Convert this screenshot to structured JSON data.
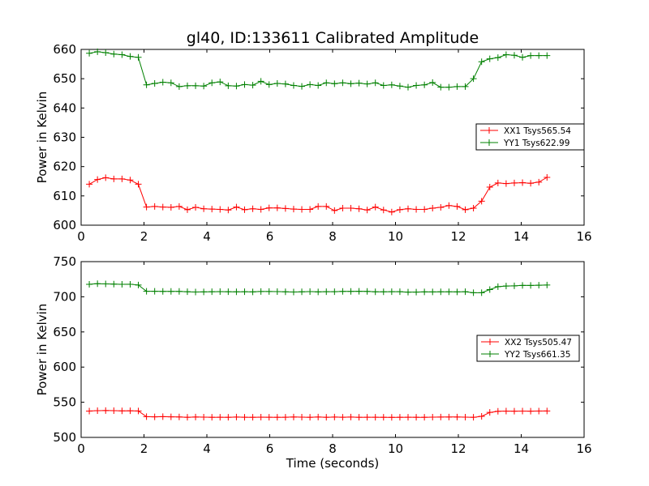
{
  "title": "gl40, ID:133611 Calibrated Amplitude",
  "chart_data": [
    {
      "type": "line",
      "title": "gl40, ID:133611 Calibrated Amplitude",
      "xlabel": "",
      "ylabel": "Power in Kelvin",
      "xlim": [
        0,
        16
      ],
      "ylim": [
        600,
        660
      ],
      "xticks": [
        0,
        2,
        4,
        6,
        8,
        10,
        12,
        14,
        16
      ],
      "yticks": [
        600,
        610,
        620,
        630,
        640,
        650,
        660
      ],
      "grid": false,
      "legend_position": "center-right",
      "marker": "plus",
      "series": [
        {
          "name": "XX1 Tsys565.54",
          "color": "#ff0000",
          "x": [
            0.26,
            0.52,
            0.78,
            1.04,
            1.3,
            1.56,
            1.82,
            2.08,
            2.34,
            2.6,
            2.86,
            3.12,
            3.38,
            3.64,
            3.9,
            4.16,
            4.42,
            4.68,
            4.94,
            5.2,
            5.46,
            5.72,
            5.98,
            6.24,
            6.5,
            6.76,
            7.02,
            7.28,
            7.54,
            7.8,
            8.06,
            8.32,
            8.58,
            8.84,
            9.1,
            9.36,
            9.62,
            9.88,
            10.14,
            10.4,
            10.66,
            10.92,
            11.18,
            11.44,
            11.7,
            11.96,
            12.22,
            12.48,
            12.74,
            13.0,
            13.26,
            13.52,
            13.78,
            14.04,
            14.3,
            14.56,
            14.82
          ],
          "y": [
            614.0,
            615.6,
            616.2,
            615.8,
            615.8,
            615.4,
            614.0,
            606.2,
            606.4,
            606.2,
            606.1,
            606.4,
            605.3,
            606.1,
            605.6,
            605.5,
            605.4,
            605.2,
            606.2,
            605.3,
            605.6,
            605.4,
            605.9,
            605.9,
            605.7,
            605.5,
            605.4,
            605.4,
            606.4,
            606.4,
            605.0,
            605.8,
            605.8,
            605.6,
            605.2,
            606.2,
            605.2,
            604.5,
            605.3,
            605.6,
            605.4,
            605.4,
            605.8,
            606.1,
            606.7,
            606.4,
            605.3,
            605.8,
            608.2,
            613.0,
            614.4,
            614.2,
            614.4,
            614.5,
            614.3,
            614.7,
            616.3
          ]
        },
        {
          "name": "YY1 Tsys622.99",
          "color": "#008000",
          "x": [
            0.26,
            0.52,
            0.78,
            1.04,
            1.3,
            1.56,
            1.82,
            2.08,
            2.34,
            2.6,
            2.86,
            3.12,
            3.38,
            3.64,
            3.9,
            4.16,
            4.42,
            4.68,
            4.94,
            5.2,
            5.46,
            5.72,
            5.98,
            6.24,
            6.5,
            6.76,
            7.02,
            7.28,
            7.54,
            7.8,
            8.06,
            8.32,
            8.58,
            8.84,
            9.1,
            9.36,
            9.62,
            9.88,
            10.14,
            10.4,
            10.66,
            10.92,
            11.18,
            11.44,
            11.7,
            11.96,
            12.22,
            12.48,
            12.74,
            13.0,
            13.26,
            13.52,
            13.78,
            14.04,
            14.3,
            14.56,
            14.82
          ],
          "y": [
            658.7,
            659.2,
            658.9,
            658.4,
            658.2,
            657.6,
            657.3,
            647.9,
            648.4,
            648.8,
            648.6,
            647.3,
            647.6,
            647.6,
            647.5,
            648.6,
            648.9,
            647.6,
            647.5,
            648.0,
            647.8,
            649.1,
            648.0,
            648.4,
            648.2,
            647.7,
            647.4,
            648.0,
            647.7,
            648.6,
            648.3,
            648.6,
            648.3,
            648.5,
            648.2,
            648.6,
            647.7,
            647.9,
            647.5,
            647.1,
            647.7,
            647.9,
            648.7,
            647.1,
            647.1,
            647.3,
            647.3,
            650.0,
            655.8,
            656.8,
            657.2,
            658.2,
            658.0,
            657.3,
            657.9,
            657.9,
            657.9
          ]
        }
      ]
    },
    {
      "type": "line",
      "title": "",
      "xlabel": "Time (seconds)",
      "ylabel": "Power in Kelvin",
      "xlim": [
        0,
        16
      ],
      "ylim": [
        500,
        750
      ],
      "xticks": [
        0,
        2,
        4,
        6,
        8,
        10,
        12,
        14,
        16
      ],
      "yticks": [
        500,
        550,
        600,
        650,
        700,
        750
      ],
      "grid": false,
      "legend_position": "center-right",
      "marker": "plus",
      "series": [
        {
          "name": "XX2 Tsys505.47",
          "color": "#ff0000",
          "x": [
            0.26,
            0.52,
            0.78,
            1.04,
            1.3,
            1.56,
            1.82,
            2.08,
            2.34,
            2.6,
            2.86,
            3.12,
            3.38,
            3.64,
            3.9,
            4.16,
            4.42,
            4.68,
            4.94,
            5.2,
            5.46,
            5.72,
            5.98,
            6.24,
            6.5,
            6.76,
            7.02,
            7.28,
            7.54,
            7.8,
            8.06,
            8.32,
            8.58,
            8.84,
            9.1,
            9.36,
            9.62,
            9.88,
            10.14,
            10.4,
            10.66,
            10.92,
            11.18,
            11.44,
            11.7,
            11.96,
            12.22,
            12.48,
            12.74,
            13.0,
            13.26,
            13.52,
            13.78,
            14.04,
            14.3,
            14.56,
            14.82
          ],
          "y": [
            537.5,
            538.0,
            538.2,
            538.0,
            537.8,
            537.9,
            537.6,
            529.5,
            529.3,
            529.5,
            529.3,
            529.1,
            528.6,
            529.0,
            528.8,
            528.6,
            528.7,
            528.6,
            528.9,
            528.7,
            528.6,
            528.8,
            528.7,
            528.6,
            528.7,
            529.0,
            528.8,
            528.6,
            529.0,
            528.6,
            528.9,
            528.7,
            528.9,
            528.6,
            528.7,
            528.7,
            528.6,
            528.5,
            528.6,
            528.7,
            528.6,
            528.6,
            528.8,
            528.9,
            529.0,
            529.0,
            528.8,
            528.6,
            530.0,
            535.5,
            537.2,
            537.4,
            537.3,
            537.4,
            537.3,
            537.5,
            537.6
          ]
        },
        {
          "name": "YY2 Tsys661.35",
          "color": "#008000",
          "x": [
            0.26,
            0.52,
            0.78,
            1.04,
            1.3,
            1.56,
            1.82,
            2.08,
            2.34,
            2.6,
            2.86,
            3.12,
            3.38,
            3.64,
            3.9,
            4.16,
            4.42,
            4.68,
            4.94,
            5.2,
            5.46,
            5.72,
            5.98,
            6.24,
            6.5,
            6.76,
            7.02,
            7.28,
            7.54,
            7.8,
            8.06,
            8.32,
            8.58,
            8.84,
            9.1,
            9.36,
            9.62,
            9.88,
            10.14,
            10.4,
            10.66,
            10.92,
            11.18,
            11.44,
            11.7,
            11.96,
            12.22,
            12.48,
            12.74,
            13.0,
            13.26,
            13.52,
            13.78,
            14.04,
            14.3,
            14.56,
            14.82
          ],
          "y": [
            717.8,
            718.6,
            718.3,
            718.0,
            717.7,
            717.8,
            716.8,
            707.8,
            707.8,
            707.7,
            707.6,
            707.7,
            707.2,
            706.8,
            707.0,
            707.2,
            707.4,
            707.2,
            707.1,
            707.2,
            707.0,
            707.5,
            707.5,
            707.4,
            707.1,
            706.8,
            707.1,
            707.4,
            707.0,
            707.3,
            707.3,
            707.6,
            707.7,
            707.8,
            707.6,
            707.1,
            707.1,
            707.3,
            707.3,
            706.6,
            706.7,
            707.0,
            706.9,
            707.1,
            707.1,
            707.0,
            707.2,
            705.8,
            705.8,
            710.3,
            714.4,
            715.3,
            715.6,
            716.2,
            716.1,
            716.5,
            716.7
          ]
        }
      ]
    }
  ]
}
